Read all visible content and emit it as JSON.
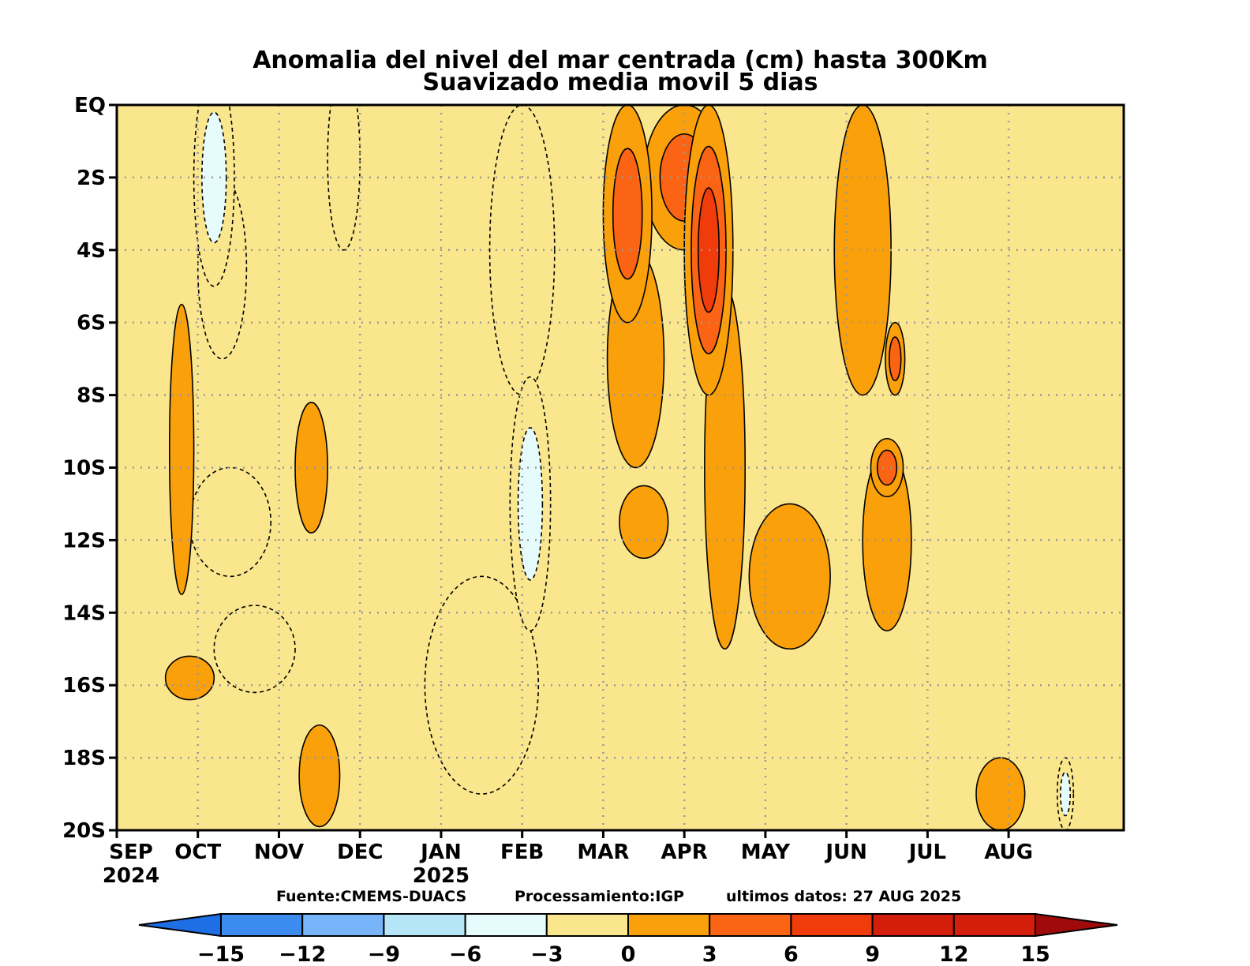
{
  "chart_data": {
    "type": "heatmap",
    "title": "Anomalia del nivel del mar centrada (cm) hasta 300Km",
    "subtitle": "Suavizado media movil 5 dias",
    "x_ticks": [
      {
        "label": "SEP",
        "year": "2024",
        "month_index": 0
      },
      {
        "label": "OCT",
        "month_index": 1
      },
      {
        "label": "NOV",
        "month_index": 2
      },
      {
        "label": "DEC",
        "month_index": 3
      },
      {
        "label": "JAN",
        "year": "2025",
        "month_index": 4
      },
      {
        "label": "FEB",
        "month_index": 5
      },
      {
        "label": "MAR",
        "month_index": 6
      },
      {
        "label": "APR",
        "month_index": 7
      },
      {
        "label": "MAY",
        "month_index": 8
      },
      {
        "label": "JUN",
        "month_index": 9
      },
      {
        "label": "JUL",
        "month_index": 10
      },
      {
        "label": "AUG",
        "month_index": 11
      }
    ],
    "x_range_months": [
      0,
      12.42
    ],
    "y_ticks": [
      {
        "label": "EQ",
        "lat": 0
      },
      {
        "label": "2S",
        "lat": -2
      },
      {
        "label": "4S",
        "lat": -4
      },
      {
        "label": "6S",
        "lat": -6
      },
      {
        "label": "8S",
        "lat": -8
      },
      {
        "label": "10S",
        "lat": -10
      },
      {
        "label": "12S",
        "lat": -12
      },
      {
        "label": "14S",
        "lat": -14
      },
      {
        "label": "16S",
        "lat": -16
      },
      {
        "label": "18S",
        "lat": -18
      },
      {
        "label": "20S",
        "lat": -20
      }
    ],
    "ylim": [
      -20,
      0
    ],
    "grid": true,
    "source_text": "Fuente:CMEMS-DUACS",
    "processing_text": "Processamiento:IGP",
    "last_data_text": "ultimos datos: 27 AUG 2025",
    "colorbar": {
      "levels": [
        -15,
        -12,
        -9,
        -6,
        -3,
        0,
        3,
        6,
        9,
        12,
        15
      ],
      "labels": [
        "−15",
        "−12",
        "−9",
        "−6",
        "−3",
        "0",
        "3",
        "6",
        "9",
        "12",
        "15"
      ],
      "colors": [
        "#1e6ee6",
        "#3c8cf0",
        "#78b4fa",
        "#b4e6f8",
        "#e6fcfc",
        "#fae68c",
        "#faa00a",
        "#fa6414",
        "#f03c0a",
        "#d21e0a",
        "#a00a0a"
      ]
    },
    "anomaly_features": [
      {
        "month": 1.2,
        "lat": -2.0,
        "value": -6,
        "sx": 0.25,
        "sy": 3.0
      },
      {
        "month": 1.3,
        "lat": -4.5,
        "value": -5,
        "sx": 0.3,
        "sy": 2.5
      },
      {
        "month": 2.8,
        "lat": -1.5,
        "value": -5,
        "sx": 0.2,
        "sy": 2.5
      },
      {
        "month": 5.1,
        "lat": -11.0,
        "value": -7,
        "sx": 0.25,
        "sy": 3.5
      },
      {
        "month": 5.0,
        "lat": -4.0,
        "value": -4,
        "sx": 0.4,
        "sy": 4.0
      },
      {
        "month": 1.4,
        "lat": -11.5,
        "value": -4,
        "sx": 0.5,
        "sy": 1.5
      },
      {
        "month": 1.7,
        "lat": -15.0,
        "value": -4,
        "sx": 0.5,
        "sy": 1.2
      },
      {
        "month": 4.5,
        "lat": -16.0,
        "value": -3,
        "sx": 0.7,
        "sy": 3.0
      },
      {
        "month": 11.7,
        "lat": -19.0,
        "value": -6,
        "sx": 0.1,
        "sy": 1.0
      },
      {
        "month": 0.8,
        "lat": -9.5,
        "value": 4,
        "sx": 0.15,
        "sy": 4.0
      },
      {
        "month": 0.9,
        "lat": -15.8,
        "value": 5,
        "sx": 0.3,
        "sy": 0.6
      },
      {
        "month": 2.4,
        "lat": -10.0,
        "value": 5,
        "sx": 0.2,
        "sy": 1.8
      },
      {
        "month": 2.5,
        "lat": -18.5,
        "value": 5,
        "sx": 0.25,
        "sy": 1.4
      },
      {
        "month": 6.3,
        "lat": -3.0,
        "value": 8,
        "sx": 0.3,
        "sy": 3.0
      },
      {
        "month": 6.4,
        "lat": -7.0,
        "value": 5,
        "sx": 0.35,
        "sy": 3.0
      },
      {
        "month": 6.5,
        "lat": -11.5,
        "value": 4,
        "sx": 0.3,
        "sy": 1.0
      },
      {
        "month": 7.3,
        "lat": -4.0,
        "value": 10,
        "sx": 0.3,
        "sy": 4.0
      },
      {
        "month": 7.0,
        "lat": -2.0,
        "value": 6,
        "sx": 0.5,
        "sy": 2.0
      },
      {
        "month": 7.5,
        "lat": -10.0,
        "value": 4,
        "sx": 0.25,
        "sy": 5.0
      },
      {
        "month": 8.3,
        "lat": -13.0,
        "value": 4,
        "sx": 0.5,
        "sy": 2.0
      },
      {
        "month": 9.2,
        "lat": -4.0,
        "value": 5,
        "sx": 0.35,
        "sy": 4.0
      },
      {
        "month": 9.6,
        "lat": -7.0,
        "value": 8,
        "sx": 0.12,
        "sy": 1.0
      },
      {
        "month": 9.5,
        "lat": -10.0,
        "value": 8,
        "sx": 0.2,
        "sy": 0.8
      },
      {
        "month": 9.5,
        "lat": -12.0,
        "value": 5,
        "sx": 0.3,
        "sy": 2.5
      },
      {
        "month": 10.9,
        "lat": -19.0,
        "value": 4,
        "sx": 0.3,
        "sy": 1.0
      }
    ]
  }
}
